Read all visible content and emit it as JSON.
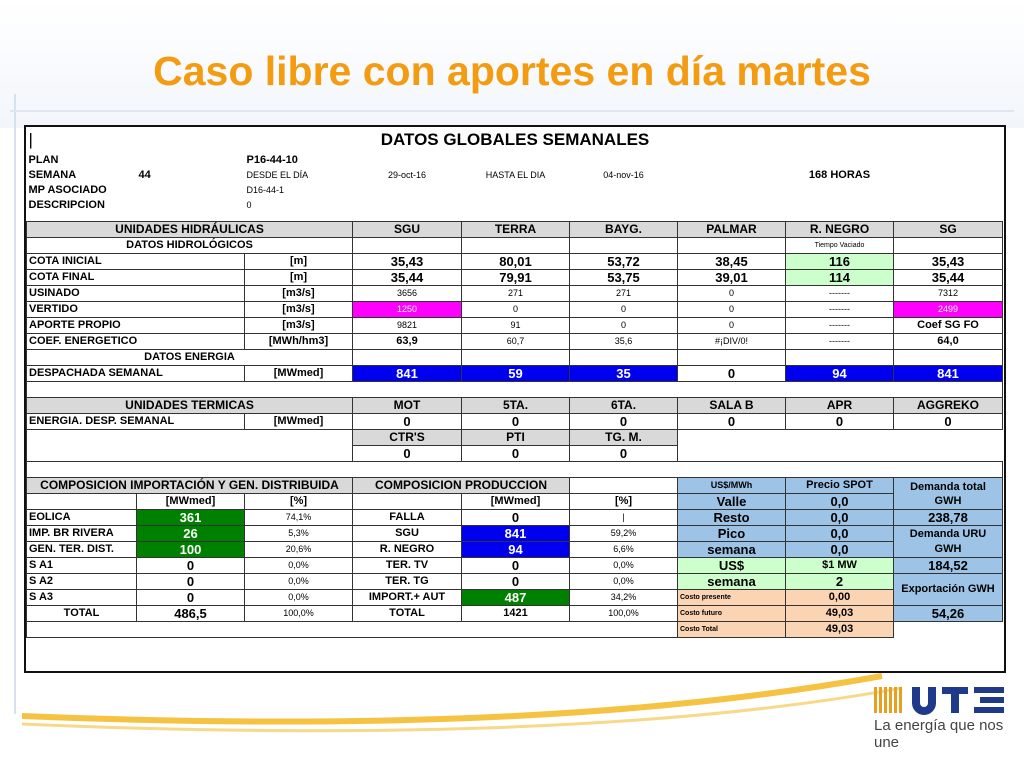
{
  "page": {
    "title": "Caso libre con aportes en día martes"
  },
  "sheet": {
    "corner": "|",
    "title": "DATOS GLOBALES SEMANALES",
    "header": {
      "plan_label": "PLAN",
      "plan_value": "P16-44-10",
      "semana_label": "SEMANA",
      "semana_value": "44",
      "desde_label": "DESDE EL DÍA",
      "desde_value": "29-oct-16",
      "hasta_label": "HASTA EL DIA",
      "hasta_value": "04-nov-16",
      "horas": "168 HORAS",
      "mp_label": "MP ASOCIADO",
      "mp_value": "D16-44-1",
      "desc_label": "DESCRIPCION",
      "desc_value": "0"
    },
    "hidro": {
      "title": "UNIDADES HIDRÁULICAS",
      "cols": [
        "SGU",
        "TERRA",
        "BAYG.",
        "PALMAR",
        "R. NEGRO",
        "SG"
      ],
      "datos_hidro": "DATOS HIDROLÓGICOS",
      "tiempo_vaciado": "Tiempo Vaciado",
      "rows": [
        {
          "label": "COTA INICIAL",
          "unit": "[m]",
          "values": [
            "35,43",
            "80,01",
            "53,72",
            "38,45",
            "116",
            "35,43"
          ]
        },
        {
          "label": "COTA FINAL",
          "unit": "[m]",
          "values": [
            "35,44",
            "79,91",
            "53,75",
            "39,01",
            "114",
            "35,44"
          ]
        },
        {
          "label": "USINADO",
          "unit": "[m3/s]",
          "values": [
            "3656",
            "271",
            "271",
            "0",
            "-------",
            "7312"
          ]
        },
        {
          "label": "VERTIDO",
          "unit": "[m3/s]",
          "values": [
            "1250",
            "0",
            "0",
            "0",
            "-------",
            "2499"
          ]
        },
        {
          "label": "APORTE PROPIO",
          "unit": "[m3/s]",
          "values": [
            "9821",
            "91",
            "0",
            "0",
            "-------",
            "Coef SG FO"
          ]
        },
        {
          "label": "COEF. ENERGETICO",
          "unit": "[MWh/hm3]",
          "values": [
            "63,9",
            "60,7",
            "35,6",
            "#¡DIV/0!",
            "-------",
            "64,0"
          ]
        }
      ],
      "datos_energia": "DATOS ENERGIA",
      "despachada": {
        "label": "DESPACHADA SEMANAL",
        "unit": "[MWmed]",
        "values": [
          "841",
          "59",
          "35",
          "0",
          "94",
          "841"
        ]
      }
    },
    "termicas": {
      "title": "UNIDADES TERMICAS",
      "cols": [
        "MOT",
        "5TA.",
        "6TA.",
        "SALA B",
        "APR",
        "AGGREKO"
      ],
      "row_label": "ENERGIA. DESP. SEMANAL",
      "row_unit": "[MWmed]",
      "values": [
        "0",
        "0",
        "0",
        "0",
        "0",
        "0"
      ],
      "cols2": [
        "CTR'S",
        "PTI",
        "TG. M."
      ],
      "values2": [
        "0",
        "0",
        "0"
      ]
    },
    "comp": {
      "imp_title": "COMPOSICION IMPORTACIÓN Y GEN. DISTRIBUIDA",
      "prod_title": "COMPOSICION PRODUCCION",
      "unit_mw": "[MWmed]",
      "unit_pct": "[%]",
      "usd_mwh": "US$/MWh",
      "precio_spot": "Precio SPOT",
      "demanda_total": "Demanda total GWH",
      "demanda_uru": "Demanda URU GWH",
      "exportacion": "Exportación GWH",
      "rows": [
        {
          "a": "EOLICA",
          "b": "361",
          "c": "74,1%",
          "d": "FALLA",
          "e": "0",
          "f": "|",
          "g": "Resto",
          "h": "0,0",
          "i": "238,78"
        },
        {
          "a": "IMP. BR RIVERA",
          "b": "26",
          "c": "5,3%",
          "d": "SGU",
          "e": "841",
          "f": "59,2%",
          "g": "Pico",
          "h": "0,0"
        },
        {
          "a": "GEN. TER. DIST.",
          "b": "100",
          "c": "20,6%",
          "d": "R. NEGRO",
          "e": "94",
          "f": "6,6%",
          "g": "semana",
          "h": "0,0"
        },
        {
          "a": "S A1",
          "b": "0",
          "c": "0,0%",
          "d": "TER. TV",
          "e": "0",
          "f": "0,0%",
          "g": "US$",
          "h": "$1 MW",
          "i": "184,52"
        },
        {
          "a": "S A2",
          "b": "0",
          "c": "0,0%",
          "d": "TER. TG",
          "e": "0",
          "f": "0,0%",
          "g": "semana",
          "h": "2"
        },
        {
          "a": "S A3",
          "b": "0",
          "c": "0,0%",
          "d": "IMPORT.+ AUT",
          "e": "487",
          "f": "34,2%",
          "g": "Costo presente",
          "h": "0,00"
        },
        {
          "a": "TOTAL",
          "b": "486,5",
          "c": "100,0%",
          "d": "TOTAL",
          "e": "1421",
          "f": "100,0%",
          "g": "Costo futuro",
          "h": "49,03",
          "i": "54,26"
        }
      ],
      "valle": "Valle",
      "valle_val": "0,0",
      "costo_total": "Costo Total",
      "costo_total_val": "49,03"
    }
  },
  "footer": {
    "slogan": "La energía que nos une",
    "logo_text": "UTE"
  },
  "colors": {
    "title": "#f39c12",
    "green": "#008000",
    "blue": "#0000ee",
    "magenta": "#ff00ff",
    "light_blue": "#9dc3e6",
    "peach": "#fbd4b4",
    "light_green": "#ccffcc",
    "logo_blue": "#1f3a8a"
  }
}
